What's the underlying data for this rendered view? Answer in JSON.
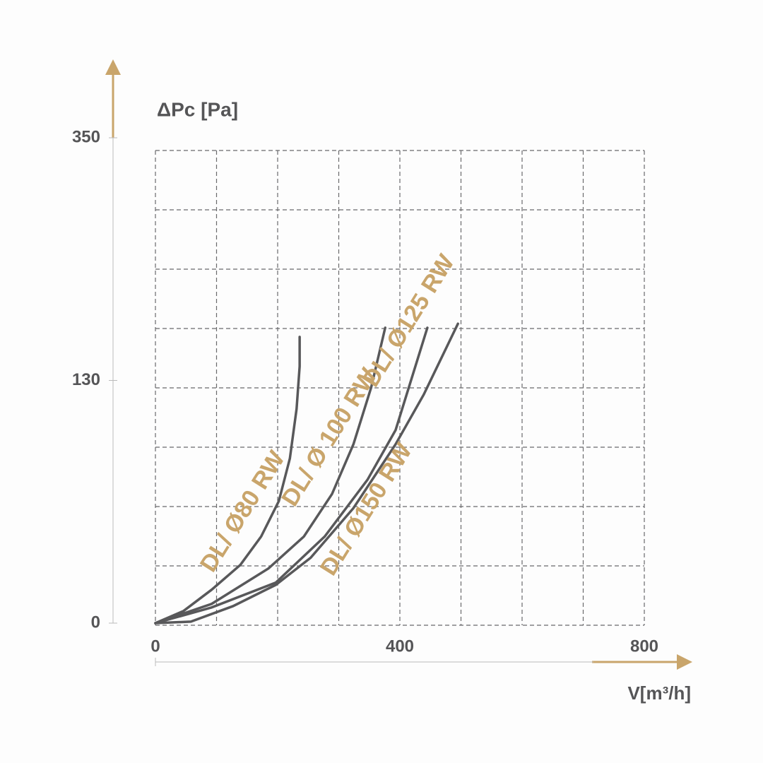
{
  "chart_data": {
    "type": "line",
    "y_label": "ΔPc [Pa]",
    "x_label": "V[m³/h]",
    "xlim": [
      0,
      800
    ],
    "xticks": [
      0,
      400,
      800
    ],
    "ylim": [
      0,
      350
    ],
    "yticks": [
      0,
      130,
      350
    ],
    "grid": true,
    "series": [
      {
        "name": "DL/ Ø80 RW",
        "color": "#58585a",
        "x": [
          0,
          46,
          92,
          139,
          173,
          202,
          220,
          231,
          236,
          236
        ],
        "values": [
          0,
          6.5,
          17.9,
          31.2,
          46.4,
          65.4,
          88.2,
          114.8,
          142.8,
          169.5
        ]
      },
      {
        "name": "DL/ Ø 100 RW",
        "color": "#58585a",
        "x": [
          0,
          92,
          185,
          243,
          289,
          324,
          353,
          376
        ],
        "values": [
          0,
          10.3,
          29.3,
          46.4,
          69.2,
          95.8,
          126.2,
          177.8
        ]
      },
      {
        "name": "DL/ Ø125 RW",
        "color": "#58585a",
        "x": [
          0,
          92,
          197,
          277,
          347,
          393,
          445
        ],
        "values": [
          0,
          8.4,
          21.7,
          46.4,
          76.8,
          103.4,
          177.8
        ]
      },
      {
        "name": "DL/ Ø150 RW",
        "color": "#58585a",
        "x": [
          0,
          58,
          127,
          197,
          254,
          324,
          393,
          439,
          495
        ],
        "values": [
          0,
          0.8,
          9.1,
          20.5,
          35,
          61.6,
          95.8,
          122.4,
          181.4
        ]
      }
    ]
  }
}
